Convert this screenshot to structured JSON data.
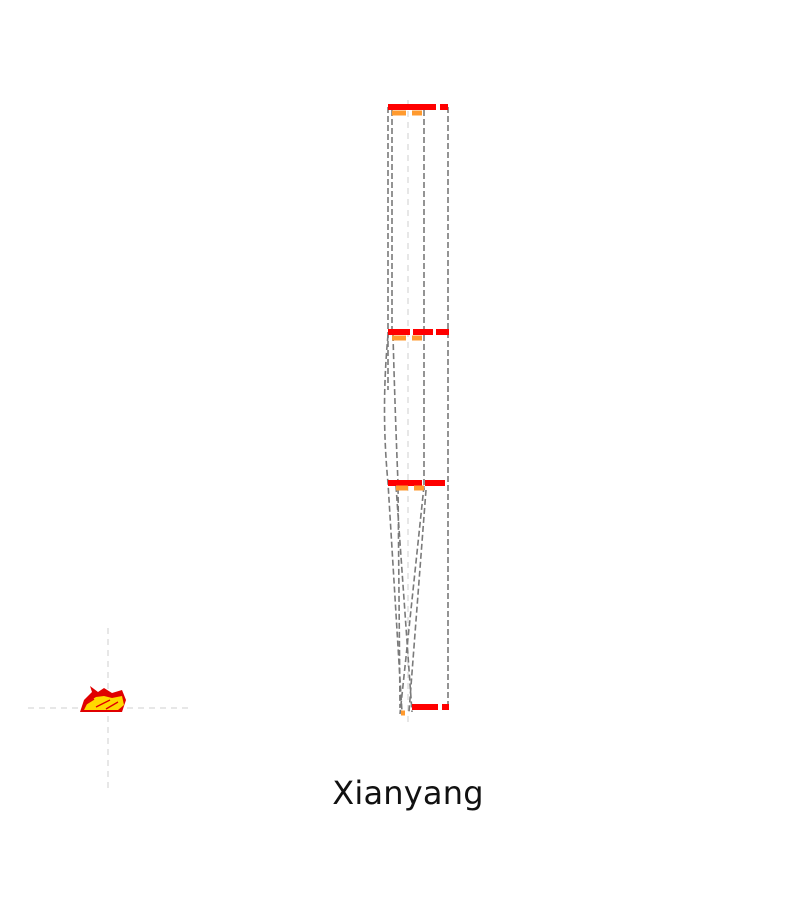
{
  "label": "Xianyang",
  "colors": {
    "primary_bar": "#ff0000",
    "secondary_bar": "#ff9a2e",
    "outline": "#7a7a7a",
    "guide": "#cfcfcf",
    "glyph_red": "#e00000",
    "glyph_yellow": "#ffd800"
  },
  "icons": {
    "glyph": "flame-icon"
  }
}
